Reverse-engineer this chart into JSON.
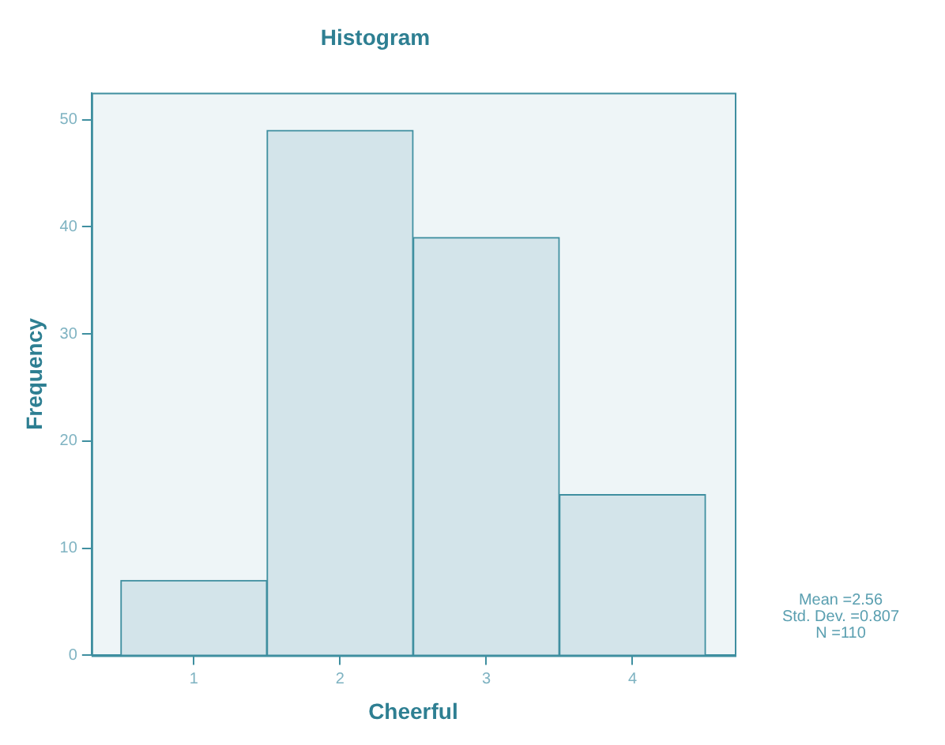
{
  "chart_data": {
    "type": "histogram",
    "title": "Histogram",
    "xlabel": "Cheerful",
    "ylabel": "Frequency",
    "bins": [
      0.5,
      1.5,
      2.5,
      3.5,
      4.5
    ],
    "values": [
      7,
      49,
      39,
      15
    ],
    "color": "#d3e4ea",
    "xlim": [
      0.3,
      4.7
    ],
    "xticks": [
      1,
      2,
      3,
      4
    ],
    "ylim": [
      0,
      52.5
    ],
    "yticks": [
      0,
      10,
      20,
      30,
      40,
      50
    ],
    "annotations": [
      "Mean =2.56",
      "Std. Dev. =0.807",
      "N =110"
    ]
  }
}
